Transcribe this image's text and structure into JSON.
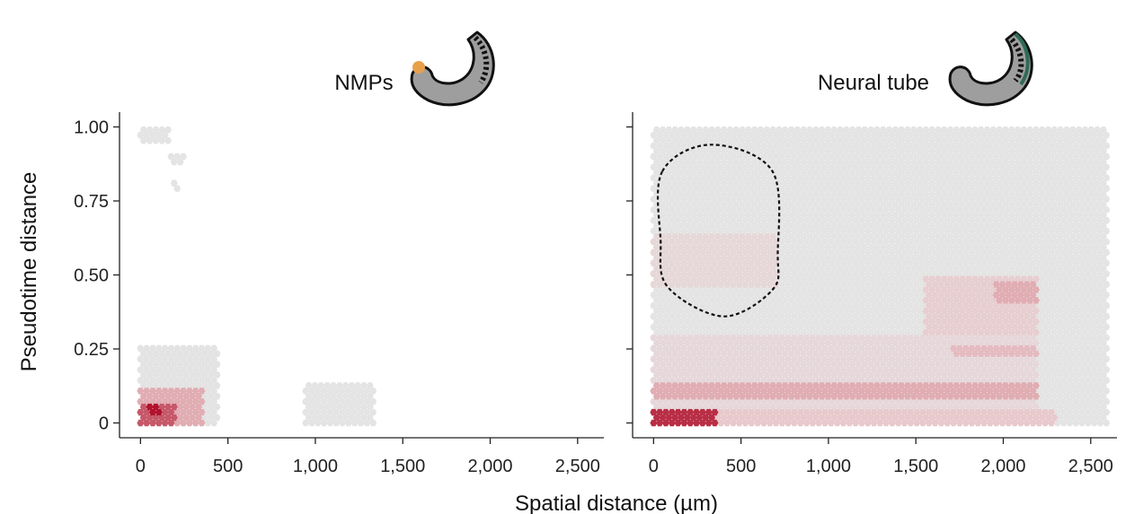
{
  "figure": {
    "ylabel": "Pseudotime distance",
    "xlabel": "Spatial distance (µm)"
  },
  "colors": {
    "background_bin": "#e4e4e4",
    "low_density": "#e8c9cc",
    "high_density": "#b1122c",
    "axis": "#222222",
    "embryo_body": "#9e9e9e",
    "nmp_highlight": "#e8a04a",
    "neural_tube_highlight": "#2e6b57"
  },
  "chart_data": [
    {
      "type": "heatmap",
      "subtype": "hexbin",
      "title": "NMPs",
      "icon": "embryo-nmp-icon",
      "xlim": [
        -120,
        2650
      ],
      "ylim": [
        -0.05,
        1.05
      ],
      "xticks": [
        0,
        500,
        1000,
        1500,
        2000,
        2500
      ],
      "xticklabels": [
        "0",
        "500",
        "1,000",
        "1,500",
        "2,000",
        "2,500"
      ],
      "yticks": [
        0,
        0.25,
        0.5,
        0.75,
        1.0
      ],
      "yticklabels": [
        "0",
        "0.25",
        "0.50",
        "0.75",
        "1.00"
      ],
      "regions": [
        {
          "x": [
            0,
            160
          ],
          "y": [
            0.94,
            1.0
          ],
          "density": 0.04
        },
        {
          "x": [
            160,
            260
          ],
          "y": [
            0.87,
            0.9
          ],
          "density": 0.03
        },
        {
          "x": [
            180,
            220
          ],
          "y": [
            0.79,
            0.81
          ],
          "density": 0.03
        },
        {
          "x": [
            0,
            450
          ],
          "y": [
            0.0,
            0.26
          ],
          "density": 0.06
        },
        {
          "x": [
            0,
            350
          ],
          "y": [
            0.0,
            0.11
          ],
          "density": 0.45
        },
        {
          "x": [
            0,
            200
          ],
          "y": [
            0.0,
            0.07
          ],
          "density": 0.75
        },
        {
          "x": [
            40,
            120
          ],
          "y": [
            0.02,
            0.06
          ],
          "density": 1.0
        },
        {
          "x": [
            930,
            1330
          ],
          "y": [
            0.0,
            0.14
          ],
          "density": 0.04
        }
      ]
    },
    {
      "type": "heatmap",
      "subtype": "hexbin",
      "title": "Neural tube",
      "icon": "embryo-neural-tube-icon",
      "xlim": [
        -120,
        2650
      ],
      "ylim": [
        -0.05,
        1.05
      ],
      "xticks": [
        0,
        500,
        1000,
        1500,
        2000,
        2500
      ],
      "xticklabels": [
        "0",
        "500",
        "1,000",
        "1,500",
        "2,000",
        "2,500"
      ],
      "yticks": [
        0,
        0.25,
        0.5,
        0.75,
        1.0
      ],
      "yticklabels": [
        "0",
        "0.25",
        "0.50",
        "0.75",
        "1.00"
      ],
      "regions": [
        {
          "x": [
            0,
            2600
          ],
          "y": [
            0.0,
            1.0
          ],
          "density": 0.02
        },
        {
          "x": [
            0,
            2200
          ],
          "y": [
            0.0,
            0.3
          ],
          "density": 0.18
        },
        {
          "x": [
            0,
            2200
          ],
          "y": [
            0.08,
            0.13
          ],
          "density": 0.45
        },
        {
          "x": [
            0,
            2300
          ],
          "y": [
            0.0,
            0.04
          ],
          "density": 0.35
        },
        {
          "x": [
            0,
            350
          ],
          "y": [
            0.0,
            0.05
          ],
          "density": 0.9
        },
        {
          "x": [
            1550,
            2200
          ],
          "y": [
            0.3,
            0.5
          ],
          "density": 0.3
        },
        {
          "x": [
            1950,
            2200
          ],
          "y": [
            0.4,
            0.47
          ],
          "density": 0.45
        },
        {
          "x": [
            1700,
            2200
          ],
          "y": [
            0.22,
            0.26
          ],
          "density": 0.4
        },
        {
          "x": [
            0,
            700
          ],
          "y": [
            0.45,
            0.63
          ],
          "density": 0.2
        }
      ],
      "annotations": [
        {
          "type": "dashed-outline",
          "points": [
            [
              50,
              0.85
            ],
            [
              330,
              0.94
            ],
            [
              680,
              0.85
            ],
            [
              710,
              0.57
            ],
            [
              680,
              0.45
            ],
            [
              400,
              0.36
            ],
            [
              80,
              0.46
            ],
            [
              40,
              0.62
            ]
          ]
        }
      ]
    }
  ]
}
